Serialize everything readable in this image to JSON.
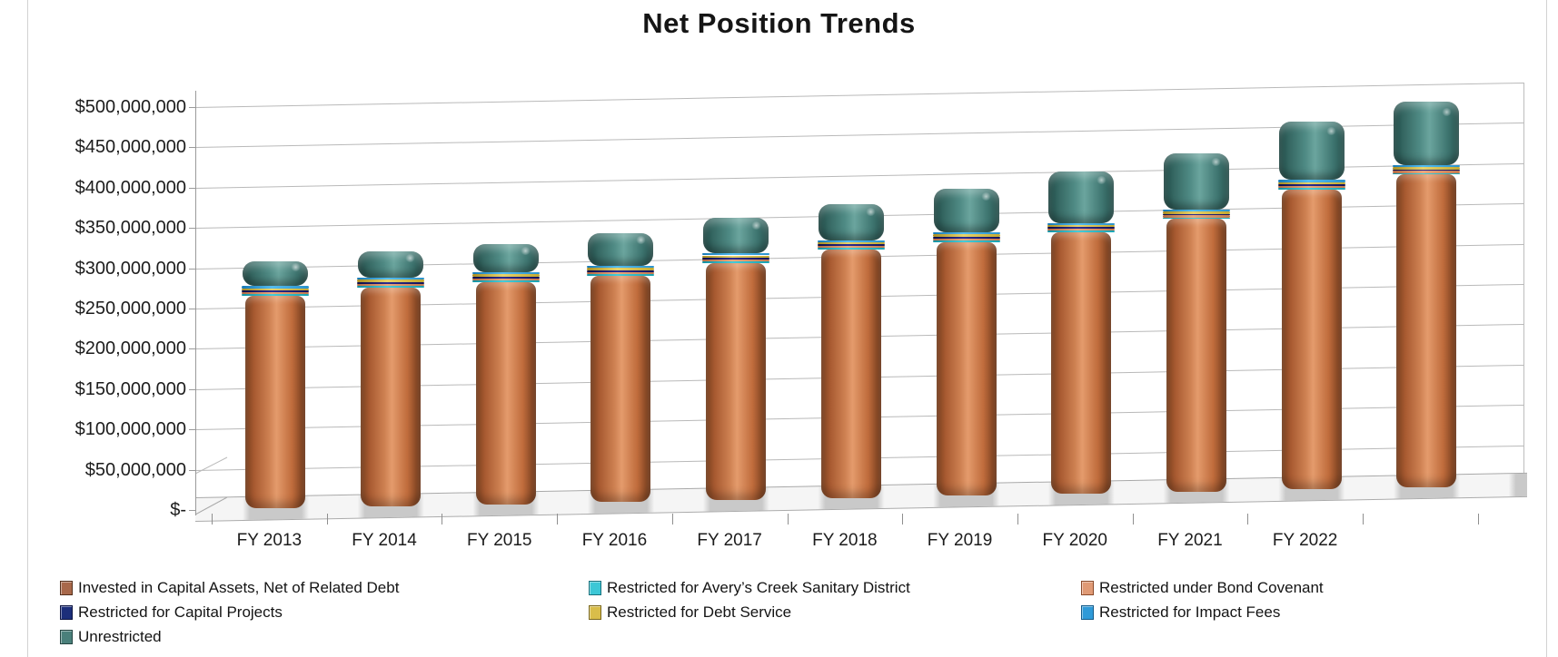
{
  "title": "Net Position Trends",
  "chart_data": {
    "type": "bar",
    "stacked": true,
    "style": "3d-rounded-columns",
    "title": "Net Position Trends",
    "categories": [
      "FY 2013",
      "FY 2014",
      "FY 2015",
      "FY 2016",
      "FY 2017",
      "FY 2018",
      "FY 2019",
      "FY 2020",
      "FY 2021",
      "FY 2022",
      ""
    ],
    "series": [
      {
        "name": "Invested in Capital Assets, Net of Related Debt",
        "swatch": "#a8684a",
        "swatch_border": "#54301d",
        "values": [
          264000000,
          272000000,
          276000000,
          281000000,
          294000000,
          308000000,
          315000000,
          324000000,
          338000000,
          372000000,
          388000000
        ]
      },
      {
        "name": "Restricted for Avery’s Creek Sanitary District",
        "swatch": "#3cc7d6",
        "swatch_border": "#17707c",
        "values": [
          2000000,
          2000000,
          2000000,
          2000000,
          2000000,
          2000000,
          2000000,
          2000000,
          2000000,
          2000000,
          2000000
        ]
      },
      {
        "name": "Restricted under Bond Covenant",
        "swatch": "#e09a75",
        "swatch_border": "#8a4a2a",
        "values": [
          2500000,
          2500000,
          2500000,
          2500000,
          2500000,
          2500000,
          2500000,
          2500000,
          2500000,
          2500000,
          2500000
        ]
      },
      {
        "name": "Restricted for Capital Projects",
        "swatch": "#1c2e7a",
        "swatch_border": "#0d1440",
        "values": [
          2000000,
          2000000,
          2000000,
          2000000,
          2000000,
          2000000,
          2000000,
          2000000,
          2000000,
          2000000,
          2000000
        ]
      },
      {
        "name": "Restricted for Debt Service",
        "swatch": "#d9bd4a",
        "swatch_border": "#7a671d",
        "values": [
          3000000,
          3000000,
          3000000,
          3000000,
          3000000,
          3000000,
          3000000,
          3000000,
          3000000,
          3000000,
          3000000
        ]
      },
      {
        "name": "Restricted for Impact Fees",
        "swatch": "#2f9ad8",
        "swatch_border": "#145a88",
        "values": [
          2500000,
          2500000,
          2500000,
          2500000,
          2500000,
          2500000,
          2500000,
          2500000,
          2500000,
          2500000,
          2500000
        ]
      },
      {
        "name": "Unrestricted",
        "swatch": "#4a807b",
        "swatch_border": "#244441",
        "values": [
          31000000,
          32000000,
          35000000,
          41000000,
          44000000,
          44000000,
          54000000,
          64000000,
          70000000,
          72000000,
          78000000
        ]
      }
    ],
    "ylim": [
      0,
      500000000
    ],
    "ytick_step": 50000000,
    "ytick_labels_bottom_up": [
      "$-",
      "$50,000,000",
      "$100,000,000",
      "$150,000,000",
      "$200,000,000",
      "$250,000,000",
      "$300,000,000",
      "$350,000,000",
      "$400,000,000",
      "$450,000,000",
      "$500,000,000"
    ],
    "grid": true,
    "legend_position": "bottom-left",
    "legend_columns": 3
  }
}
